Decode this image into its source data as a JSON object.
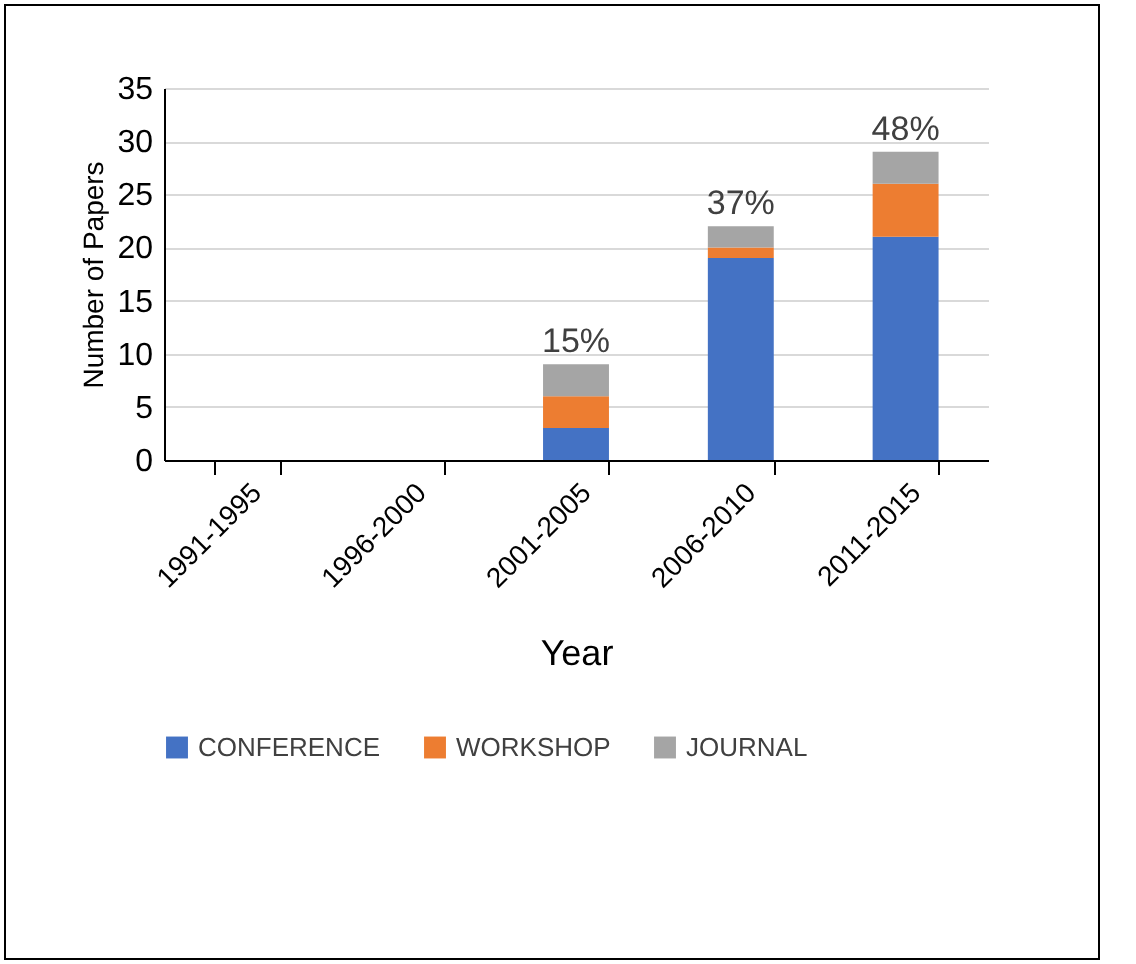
{
  "chart_data": {
    "type": "bar",
    "stacked": true,
    "xlabel": "Year",
    "ylabel": "Number of Papers",
    "categories": [
      "1991-1995",
      "1996-2000",
      "2001-2005",
      "2006-2010",
      "2011-2015"
    ],
    "series": [
      {
        "name": "CONFERENCE",
        "color": "#4472c4",
        "values": [
          0,
          0,
          3,
          19,
          21
        ]
      },
      {
        "name": "WORKSHOP",
        "color": "#ed7d31",
        "values": [
          0,
          0,
          3,
          1,
          5
        ]
      },
      {
        "name": "JOURNAL",
        "color": "#a5a5a5",
        "values": [
          0,
          0,
          3,
          2,
          3
        ]
      }
    ],
    "annotations": [
      {
        "text": "15%",
        "x": "2001-2005",
        "y": 9
      },
      {
        "text": "37%",
        "x": "2006-2010",
        "y": 22
      },
      {
        "text": "48%",
        "x": "2011-2015",
        "y": 29
      }
    ],
    "ylim": [
      0,
      35
    ],
    "yticks": [
      0,
      5,
      10,
      15,
      20,
      25,
      30,
      35
    ],
    "grid": "y",
    "legend": "bottom"
  }
}
